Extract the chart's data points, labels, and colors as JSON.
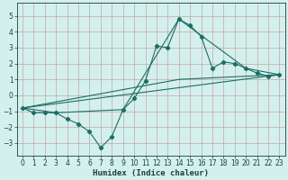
{
  "xlabel": "Humidex (Indice chaleur)",
  "bg_color": "#d4f0ec",
  "grid_color": "#c0a8a8",
  "line_color": "#1a6e64",
  "xlim": [
    -0.5,
    23.5
  ],
  "ylim": [
    -3.8,
    5.8
  ],
  "xticks": [
    0,
    1,
    2,
    3,
    4,
    5,
    6,
    7,
    8,
    9,
    10,
    11,
    12,
    13,
    14,
    15,
    16,
    17,
    18,
    19,
    20,
    21,
    22,
    23
  ],
  "yticks": [
    -3,
    -2,
    -1,
    0,
    1,
    2,
    3,
    4,
    5
  ],
  "main_x": [
    0,
    1,
    2,
    3,
    4,
    5,
    6,
    7,
    8,
    9,
    10,
    11,
    12,
    13,
    14,
    15,
    16,
    17,
    18,
    19,
    20,
    21,
    22,
    23
  ],
  "main_y": [
    -0.8,
    -1.1,
    -1.1,
    -1.1,
    -1.5,
    -1.8,
    -2.3,
    -3.3,
    -2.6,
    -0.9,
    -0.2,
    0.9,
    3.1,
    3.0,
    4.8,
    4.4,
    3.7,
    1.7,
    2.1,
    2.0,
    1.7,
    1.4,
    1.2,
    1.3
  ],
  "regline1_x": [
    0,
    23
  ],
  "regline1_y": [
    -0.8,
    1.3
  ],
  "regline2_x": [
    0,
    14,
    23
  ],
  "regline2_y": [
    -0.8,
    1.0,
    1.3
  ],
  "regline3_x": [
    0,
    3,
    9,
    14,
    20,
    23
  ],
  "regline3_y": [
    -0.8,
    -1.1,
    -0.9,
    4.8,
    1.7,
    1.3
  ]
}
